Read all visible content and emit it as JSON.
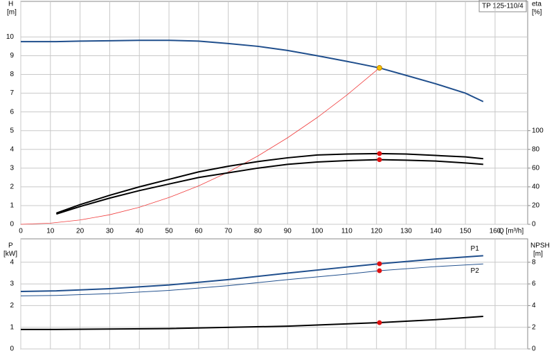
{
  "chart_data": [
    {
      "type": "line",
      "title": "TP 125-110/4",
      "xlabel": "Q [m³/h]",
      "ylabel": "H",
      "yunit": "[m]",
      "y2label": "eta",
      "y2unit": "[%]",
      "xlim": [
        0,
        171
      ],
      "xticks": [
        0,
        10,
        20,
        30,
        40,
        50,
        60,
        70,
        80,
        90,
        100,
        110,
        120,
        130,
        140,
        150,
        160
      ],
      "ylim": [
        0,
        11.9
      ],
      "yticks": [
        0,
        1,
        2,
        3,
        4,
        5,
        6,
        7,
        8,
        9,
        10
      ],
      "y2lim": [
        0,
        238
      ],
      "y2ticks": [
        0,
        20,
        40,
        60,
        80,
        100
      ],
      "grid": true,
      "series": [
        {
          "color": "#1f4e8c",
          "width": 2,
          "x": [
            0,
            12,
            20,
            30,
            40,
            50,
            60,
            70,
            80,
            90,
            100,
            110,
            121,
            130,
            140,
            150,
            156
          ],
          "values": [
            9.75,
            9.75,
            9.78,
            9.8,
            9.82,
            9.82,
            9.78,
            9.65,
            9.5,
            9.28,
            9.0,
            8.7,
            8.35,
            7.95,
            7.5,
            7.0,
            6.55
          ]
        },
        {
          "color": "#f03c3c",
          "width": 0.8,
          "x": [
            0,
            10,
            20,
            30,
            40,
            50,
            60,
            70,
            80,
            90,
            100,
            110,
            121
          ],
          "values": [
            0,
            0.06,
            0.23,
            0.51,
            0.91,
            1.43,
            2.05,
            2.79,
            3.65,
            4.62,
            5.7,
            6.9,
            8.35
          ]
        },
        {
          "color": "#000000",
          "width": 2,
          "axis": "y2",
          "x": [
            12,
            20,
            30,
            40,
            50,
            60,
            70,
            80,
            90,
            100,
            110,
            121,
            130,
            140,
            150,
            156
          ],
          "values": [
            12,
            21,
            31,
            40,
            48,
            56,
            62,
            67,
            71,
            74,
            75,
            75.5,
            75,
            73.5,
            72,
            70
          ]
        },
        {
          "color": "#000000",
          "width": 2,
          "axis": "y2",
          "x": [
            12,
            20,
            30,
            40,
            50,
            60,
            70,
            80,
            90,
            100,
            110,
            121,
            130,
            140,
            150,
            156
          ],
          "values": [
            11,
            19,
            28,
            36,
            43,
            50,
            55,
            60,
            64,
            66.5,
            68,
            69,
            68.5,
            67.5,
            65.5,
            64
          ]
        }
      ],
      "points": [
        {
          "x": 121,
          "y": 8.35,
          "color": "#f5c400"
        },
        {
          "x": 121,
          "y": 75.5,
          "axis": "y2",
          "color": "#e01010"
        },
        {
          "x": 121,
          "y": 69,
          "axis": "y2",
          "color": "#e01010"
        }
      ]
    },
    {
      "type": "line",
      "ylabel": "P",
      "yunit": "[kW]",
      "y2label": "NPSH",
      "y2unit": "[m]",
      "xlim": [
        0,
        171
      ],
      "ylim": [
        0,
        5.08
      ],
      "yticks": [
        0,
        1,
        2,
        3,
        4
      ],
      "y2lim": [
        0,
        10.16
      ],
      "y2ticks": [
        0,
        2,
        4,
        6,
        8
      ],
      "grid": true,
      "series": [
        {
          "name": "P1",
          "color": "#1f4e8c",
          "width": 2,
          "x": [
            0,
            12,
            30,
            50,
            70,
            90,
            110,
            121,
            140,
            156
          ],
          "values": [
            2.65,
            2.68,
            2.78,
            2.95,
            3.2,
            3.5,
            3.78,
            3.93,
            4.15,
            4.3
          ]
        },
        {
          "name": "P2",
          "color": "#1f4e8c",
          "width": 1,
          "x": [
            0,
            12,
            30,
            50,
            70,
            90,
            110,
            121,
            140,
            156
          ],
          "values": [
            2.45,
            2.47,
            2.55,
            2.7,
            2.92,
            3.2,
            3.45,
            3.61,
            3.8,
            3.92
          ]
        },
        {
          "color": "#000000",
          "width": 2,
          "axis": "y2",
          "x": [
            0,
            12,
            50,
            90,
            121,
            140,
            156
          ],
          "values": [
            1.8,
            1.8,
            1.88,
            2.1,
            2.43,
            2.7,
            3.0
          ]
        }
      ],
      "points": [
        {
          "x": 121,
          "y": 3.93,
          "color": "#e01010"
        },
        {
          "x": 121,
          "y": 3.61,
          "color": "#e01010"
        },
        {
          "x": 121,
          "y": 2.43,
          "axis": "y2",
          "color": "#e01010"
        }
      ]
    }
  ]
}
